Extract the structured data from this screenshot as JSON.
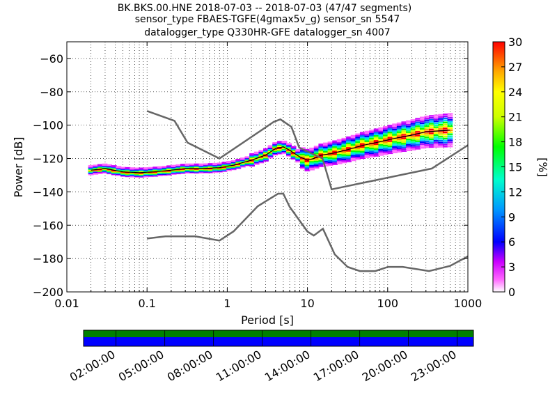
{
  "header": {
    "line1": "BK.BKS.00.HNE   2018-07-03 -- 2018-07-03  (47/47 segments)",
    "line2": "sensor_type FBAES-TGFE(4gmax5v_g) sensor_sn 5547",
    "line3": "datalogger_type Q330HR-GFE datalogger_sn 4007"
  },
  "chart_data": {
    "type": "heatmap",
    "title": "BK.BKS.00.HNE   2018-07-03 -- 2018-07-03  (47/47 segments)",
    "xlabel": "Period [s]",
    "ylabel": "Power [dB]",
    "x_scale": "log",
    "xlim": [
      0.01,
      1000
    ],
    "ylim": [
      -200,
      -50
    ],
    "x_ticks": [
      "0.01",
      "0.1",
      "1",
      "10",
      "100",
      "1000"
    ],
    "y_ticks": [
      "−200",
      "−180",
      "−160",
      "−140",
      "−120",
      "−100",
      "−80",
      "−60"
    ],
    "x_tick_values": [
      0.01,
      0.1,
      1,
      10,
      100,
      1000
    ],
    "y_tick_values": [
      -200,
      -180,
      -160,
      -140,
      -120,
      -100,
      -80,
      -60
    ],
    "grid": true,
    "colorbar": {
      "label": "[%]",
      "range": [
        0,
        30
      ],
      "ticks": [
        "0",
        "3",
        "6",
        "9",
        "12",
        "15",
        "18",
        "21",
        "24",
        "27",
        "30"
      ],
      "tick_values": [
        0,
        3,
        6,
        9,
        12,
        15,
        18,
        21,
        24,
        27,
        30
      ]
    },
    "ppsd_center": {
      "period": [
        0.02,
        0.03,
        0.05,
        0.08,
        0.12,
        0.2,
        0.3,
        0.5,
        0.8,
        1.2,
        2,
        3,
        4,
        5,
        6,
        8,
        10,
        12,
        15,
        20,
        30,
        50,
        80,
        120,
        200,
        300,
        600
      ],
      "power": [
        -127,
        -126,
        -128,
        -128.5,
        -128,
        -127,
        -126,
        -126,
        -125.5,
        -124,
        -121,
        -118,
        -114,
        -113,
        -115,
        -119,
        -121,
        -120,
        -118,
        -117,
        -115,
        -112,
        -110,
        -108,
        -106,
        -104,
        -103
      ]
    },
    "noise_models": [
      {
        "period": [
          0.1,
          0.17,
          0.22,
          0.4,
          0.8,
          1.2,
          2.4,
          4.3,
          5,
          6,
          10,
          12,
          15.6,
          21.9,
          31.6,
          45,
          70,
          101,
          154,
          328,
          600,
          1000
        ],
        "power": [
          -168,
          -166.7,
          -166.7,
          -166.7,
          -169.2,
          -163.7,
          -148.6,
          -141.1,
          -141.1,
          -149,
          -163.8,
          -166.2,
          -162.1,
          -177.5,
          -185,
          -187.5,
          -187.5,
          -185,
          -185,
          -187.5,
          -184.4,
          -178.7
        ]
      },
      {
        "period": [
          0.1,
          0.22,
          0.32,
          0.8,
          3.8,
          4.6,
          6.3,
          7.9,
          15.4,
          20,
          354.8,
          1000
        ],
        "power": [
          -91.5,
          -97.4,
          -110.5,
          -120,
          -98,
          -96.5,
          -101,
          -113.5,
          -120,
          -138.5,
          -126,
          -112
        ]
      }
    ]
  },
  "time_strip": {
    "labels": [
      "02:00:00",
      "05:00:00",
      "08:00:00",
      "11:00:00",
      "14:00:00",
      "17:00:00",
      "20:00:00",
      "23:00:00"
    ],
    "label_hours": [
      2,
      5,
      8,
      11,
      14,
      17,
      20,
      23
    ],
    "range_hours": [
      0,
      24
    ],
    "data_color": "#0000ff",
    "coverage_color": "#008000"
  },
  "colors": {
    "noise_model": "#666666",
    "mean_line": "#000000"
  }
}
